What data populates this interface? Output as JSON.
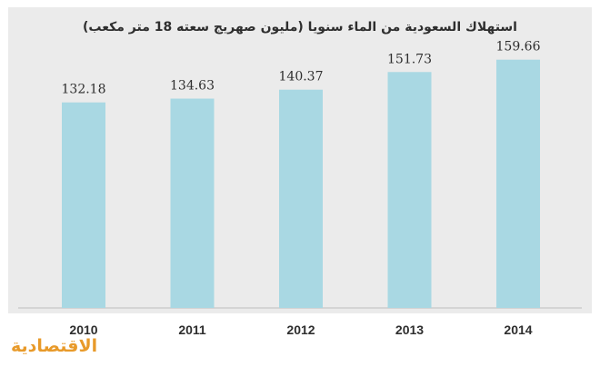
{
  "chart_data": {
    "type": "bar",
    "title": "استهلاك السعودية من الماء سنويا (مليون صهريج سعته 18 متر مكعب)",
    "categories": [
      "2010",
      "2011",
      "2012",
      "2013",
      "2014"
    ],
    "values": [
      132.18,
      134.63,
      140.37,
      151.73,
      159.66
    ],
    "value_labels": [
      "132.18",
      "134.63",
      "140.37",
      "151.73",
      "159.66"
    ],
    "xlabel": "",
    "ylabel": "",
    "ylim": [
      0,
      170
    ],
    "grid": false,
    "legend": "none",
    "colors": {
      "bar": "#a9d8e3",
      "background": "#ebebeb",
      "text": "#2e2e2e",
      "baseline": "#bdbdbd"
    }
  },
  "brand": {
    "logo_text": "الاقتصادية",
    "color": "#e89a2a"
  }
}
